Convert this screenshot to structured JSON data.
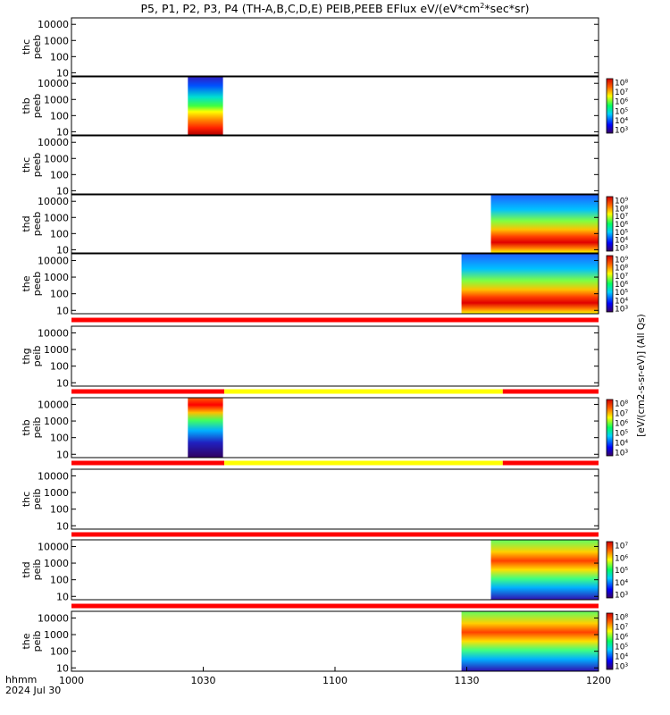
{
  "chart_data": {
    "type": "heatmap",
    "title": "P5, P1, P2, P3, P4 (TH-A,B,C,D,E) PEIB,PEEB EFlux eV/(eV*cm²*sec*sr)",
    "title_parts": {
      "pre": "P5, P1, P2, P3, P4 (TH-A,B,C,D,E) PEIB,PEEB EFlux eV/(eV*cm",
      "sup": "2",
      "post": "*sec*sr)"
    },
    "x_axis": {
      "corner_label": "hhmm",
      "date_label": "2024 Jul 30",
      "range_minutes": [
        0,
        120
      ],
      "ticks": [
        {
          "m": 0,
          "label": "1000"
        },
        {
          "m": 30,
          "label": "1030"
        },
        {
          "m": 60,
          "label": "1100"
        },
        {
          "m": 90,
          "label": "1130"
        },
        {
          "m": 120,
          "label": "1200"
        }
      ]
    },
    "y_ticks": [
      "10000",
      "1000",
      "100",
      "10"
    ],
    "y_range_log": [
      0.8,
      4.4
    ],
    "colorbar_unit": "[eV/(cm2-s-sr-eV)] (All Qs)",
    "panels": [
      {
        "id": "thc-peeb",
        "probe": "thc",
        "product": "peeb",
        "blocks": [],
        "bar": null,
        "colorbar": []
      },
      {
        "id": "thb-peeb",
        "probe": "thb",
        "product": "peeb",
        "blocks": [
          {
            "start": 26.5,
            "end": 34.5,
            "style": "electron"
          }
        ],
        "bar": null,
        "colorbar": [
          "10⁸",
          "10⁷",
          "10⁶",
          "10⁵",
          "10⁴",
          "10³"
        ]
      },
      {
        "id": "thc-peeb-2",
        "probe": "thc",
        "product": "peeb",
        "blocks": [],
        "bar": null,
        "colorbar": []
      },
      {
        "id": "thd-peeb",
        "probe": "thd",
        "product": "peeb",
        "blocks": [
          {
            "start": 95.5,
            "end": 120,
            "style": "electron-mixed"
          }
        ],
        "bar": null,
        "colorbar": [
          "10⁹",
          "10⁸",
          "10⁷",
          "10⁶",
          "10⁵",
          "10⁴",
          "10³"
        ]
      },
      {
        "id": "the-peeb",
        "probe": "the",
        "product": "peeb",
        "blocks": [
          {
            "start": 88.8,
            "end": 120,
            "style": "electron-mixed"
          }
        ],
        "bar": [
          {
            "start": 0,
            "end": 120,
            "color": "red"
          }
        ],
        "colorbar": [
          "10⁹",
          "10⁸",
          "10⁷",
          "10⁶",
          "10⁵",
          "10⁴",
          "10³"
        ]
      },
      {
        "id": "thg-peib",
        "probe": "thg",
        "product": "peib",
        "blocks": [],
        "bar": [
          {
            "start": 0,
            "end": 34.8,
            "color": "red"
          },
          {
            "start": 34.8,
            "end": 98.2,
            "color": "yellow"
          },
          {
            "start": 98.2,
            "end": 120,
            "color": "red"
          }
        ],
        "colorbar": []
      },
      {
        "id": "thb-peib",
        "probe": "thb",
        "product": "peib",
        "blocks": [
          {
            "start": 26.5,
            "end": 34.5,
            "style": "ion"
          }
        ],
        "bar": [
          {
            "start": 0,
            "end": 34.8,
            "color": "red"
          },
          {
            "start": 34.8,
            "end": 98.2,
            "color": "yellow"
          },
          {
            "start": 98.2,
            "end": 120,
            "color": "red"
          }
        ],
        "colorbar": [
          "10⁸",
          "10⁷",
          "10⁶",
          "10⁵",
          "10⁴",
          "10³"
        ]
      },
      {
        "id": "thc-peib",
        "probe": "thc",
        "product": "peib",
        "blocks": [],
        "bar": [
          {
            "start": 0,
            "end": 120,
            "color": "red"
          }
        ],
        "colorbar": []
      },
      {
        "id": "thd-peib",
        "probe": "thd",
        "product": "peib",
        "blocks": [
          {
            "start": 95.5,
            "end": 120,
            "style": "ion-mixed"
          }
        ],
        "bar": [
          {
            "start": 0,
            "end": 120,
            "color": "red"
          }
        ],
        "colorbar": [
          "10⁷",
          "10⁶",
          "10⁵",
          "10⁴",
          "10³"
        ]
      },
      {
        "id": "the-peib",
        "probe": "the",
        "product": "peib",
        "blocks": [
          {
            "start": 88.8,
            "end": 120,
            "style": "ion-mixed"
          }
        ],
        "bar": null,
        "colorbar": [
          "10⁸",
          "10⁷",
          "10⁶",
          "10⁵",
          "10⁴",
          "10³"
        ]
      }
    ]
  }
}
